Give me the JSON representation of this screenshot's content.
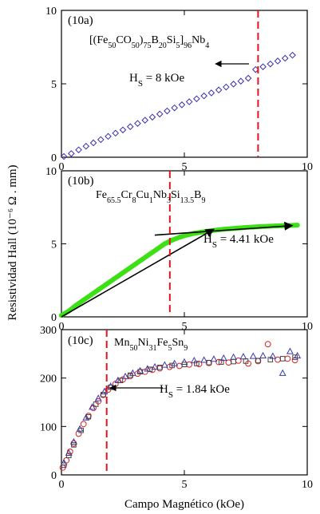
{
  "figure": {
    "ylabel": "Resistividad Hall (10⁻⁶ Ω . mm)",
    "xlabel": "Campo Magnético (kOe)"
  },
  "chart_data": [
    {
      "type": "scatter",
      "panel": "(10a)",
      "composition": "[(Fe50CO50)75B20Si5]96Nb4",
      "hs_label": "HS = 8 kOe",
      "hs_value": 8,
      "xlim": [
        0,
        10
      ],
      "ylim": [
        0,
        10
      ],
      "xticks": [
        0,
        5,
        10
      ],
      "yticks": [
        0,
        5,
        10
      ],
      "marker": "diamond",
      "marker_color": "#3a2fb0",
      "vline_color": "#e0141e",
      "series": [
        {
          "x": [
            0.1,
            0.4,
            0.7,
            1.0,
            1.3,
            1.6,
            1.9,
            2.2,
            2.5,
            2.8,
            3.1,
            3.4,
            3.7,
            4.0,
            4.3,
            4.6,
            4.9,
            5.2,
            5.5,
            5.8,
            6.1,
            6.4,
            6.7,
            7.0,
            7.3,
            7.6,
            7.9,
            8.2,
            8.5,
            8.8,
            9.1,
            9.4
          ],
          "y": [
            0.05,
            0.25,
            0.5,
            0.75,
            0.98,
            1.2,
            1.42,
            1.64,
            1.86,
            2.08,
            2.3,
            2.52,
            2.73,
            2.94,
            3.15,
            3.36,
            3.57,
            3.78,
            3.98,
            4.18,
            4.38,
            4.58,
            4.78,
            4.98,
            5.18,
            5.38,
            5.97,
            6.16,
            6.35,
            6.55,
            6.74,
            6.95
          ]
        }
      ]
    },
    {
      "type": "line",
      "panel": "(10b)",
      "composition": "Fe65.5Cr8Cu1Nb3Si13.5B9",
      "hs_label": "HS = 4.41 kOe",
      "hs_value": 4.41,
      "xlim": [
        0,
        10
      ],
      "ylim": [
        0,
        10
      ],
      "xticks": [
        0,
        5,
        10
      ],
      "yticks": [
        0,
        5,
        10
      ],
      "data_color": "#3ce014",
      "fit_color": "#000000",
      "vline_color": "#e0141e",
      "series": [
        {
          "x": [
            0.0,
            0.3,
            0.6,
            0.9,
            1.2,
            1.5,
            1.8,
            2.1,
            2.4,
            2.7,
            3.0,
            3.3,
            3.6,
            3.9,
            4.2,
            4.5,
            4.8,
            5.1,
            5.4,
            5.7,
            6.0,
            6.3,
            6.6,
            6.9,
            7.2,
            7.5,
            7.8,
            8.1,
            8.4,
            8.7,
            9.0,
            9.3,
            9.6
          ],
          "y": [
            0.1,
            0.4,
            0.8,
            1.15,
            1.5,
            1.85,
            2.2,
            2.55,
            2.9,
            3.25,
            3.6,
            3.95,
            4.3,
            4.65,
            5.0,
            5.25,
            5.45,
            5.6,
            5.72,
            5.8,
            5.88,
            5.94,
            6.0,
            6.04,
            6.08,
            6.12,
            6.15,
            6.18,
            6.2,
            6.22,
            6.24,
            6.26,
            6.28
          ]
        }
      ],
      "fits": [
        {
          "x": [
            0.0,
            6.2
          ],
          "y": [
            0.0,
            6.0
          ]
        },
        {
          "x": [
            3.8,
            9.4
          ],
          "y": [
            5.6,
            6.25
          ]
        }
      ]
    },
    {
      "type": "scatter",
      "panel": "(10c)",
      "composition": "Mn50Ni31Fe5Sn9",
      "hs_label": "HS = 1.84 kOe",
      "hs_value": 1.84,
      "xlim": [
        0,
        10
      ],
      "ylim": [
        0,
        300
      ],
      "xticks": [
        0,
        5,
        10
      ],
      "yticks": [
        0,
        100,
        200,
        300
      ],
      "vline_color": "#e0141e",
      "series": [
        {
          "marker": "circle",
          "color": "#e02020",
          "x": [
            0.05,
            0.2,
            0.35,
            0.5,
            0.7,
            0.9,
            1.1,
            1.3,
            1.5,
            1.7,
            1.9,
            2.2,
            2.5,
            2.8,
            3.1,
            3.4,
            3.7,
            4.0,
            4.4,
            4.8,
            5.2,
            5.6,
            6.0,
            6.4,
            6.8,
            7.2,
            7.6,
            8.0,
            8.4,
            8.8,
            9.2,
            9.5
          ],
          "y": [
            15,
            30,
            48,
            65,
            85,
            105,
            122,
            138,
            152,
            165,
            176,
            188,
            197,
            204,
            209,
            213,
            217,
            220,
            223,
            225,
            228,
            229,
            231,
            233,
            232,
            236,
            230,
            235,
            270,
            238,
            240,
            237
          ]
        },
        {
          "marker": "triangle",
          "color": "#3a3ab4",
          "x": [
            0.1,
            0.3,
            0.5,
            0.75,
            1.0,
            1.25,
            1.5,
            1.75,
            2.0,
            2.3,
            2.6,
            2.9,
            3.2,
            3.5,
            3.8,
            4.2,
            4.6,
            5.0,
            5.4,
            5.8,
            6.2,
            6.6,
            7.0,
            7.4,
            7.8,
            8.2,
            8.6,
            9.0,
            9.3,
            9.6
          ],
          "y": [
            25,
            45,
            68,
            95,
            118,
            140,
            158,
            172,
            183,
            195,
            203,
            210,
            215,
            219,
            223,
            227,
            230,
            233,
            236,
            237,
            239,
            241,
            243,
            244,
            245,
            246,
            245,
            210,
            255,
            246
          ]
        },
        {
          "marker": "square",
          "color": "#444444",
          "x": [
            0.1,
            0.3,
            0.5,
            0.8,
            1.1,
            1.4,
            1.7,
            2.0,
            2.4,
            2.8,
            3.2,
            3.6,
            4.0,
            4.5,
            5.0,
            5.5,
            6.0,
            6.5,
            7.0,
            7.5,
            8.0,
            8.5,
            9.0,
            9.5
          ],
          "y": [
            20,
            40,
            62,
            92,
            120,
            146,
            166,
            181,
            195,
            206,
            213,
            218,
            222,
            226,
            228,
            230,
            232,
            233,
            234,
            235,
            236,
            238,
            240,
            243
          ]
        }
      ]
    }
  ]
}
